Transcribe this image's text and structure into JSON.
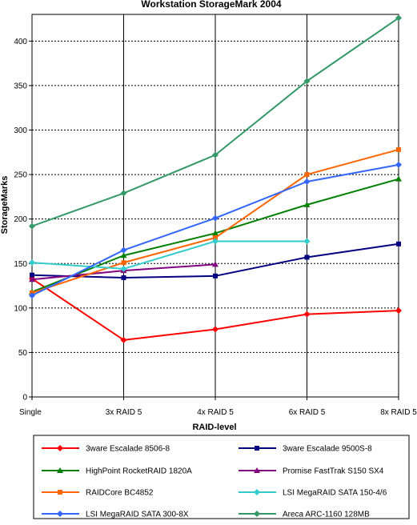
{
  "chart_data": {
    "type": "line",
    "title": "Workstation StorageMark 2004",
    "xlabel": "RAID-level",
    "ylabel": "StorageMarks",
    "categories": [
      "Single",
      "3x RAID 5",
      "4x RAID 5",
      "6x RAID 5",
      "8x RAID 5"
    ],
    "ylim": [
      0,
      430
    ],
    "yticks": [
      0,
      50,
      100,
      150,
      200,
      250,
      300,
      350,
      400
    ],
    "grid": true,
    "legend": "bottom",
    "series": [
      {
        "name": "3ware Escalade 8506-8",
        "color": "#ff0000",
        "marker": "diamond",
        "values": [
          133,
          64,
          76,
          93,
          97
        ]
      },
      {
        "name": "3ware Escalade 9500S-8",
        "color": "#000080",
        "marker": "square",
        "values": [
          137,
          134,
          136,
          157,
          172
        ]
      },
      {
        "name": "HighPoint RocketRAID 1820A",
        "color": "#008000",
        "marker": "triangle",
        "values": [
          118,
          159,
          184,
          216,
          245
        ]
      },
      {
        "name": "Promise FastTrak S150 SX4",
        "color": "#800080",
        "marker": "triangle",
        "values": [
          132,
          142,
          149,
          null,
          null
        ]
      },
      {
        "name": "RAIDCore BC4852",
        "color": "#ff6600",
        "marker": "square",
        "values": [
          117,
          151,
          179,
          250,
          278
        ]
      },
      {
        "name": "LSI MegaRAID SATA 150-4/6",
        "color": "#33cccc",
        "marker": "diamond",
        "values": [
          151,
          144,
          175,
          175,
          null
        ]
      },
      {
        "name": "LSI MegaRAID SATA 300-8X",
        "color": "#3366ff",
        "marker": "diamond",
        "values": [
          114,
          165,
          201,
          242,
          261
        ]
      },
      {
        "name": "Areca ARC-1160 128MB",
        "color": "#339966",
        "marker": "diamond",
        "values": [
          192,
          229,
          272,
          355,
          426
        ]
      }
    ]
  }
}
